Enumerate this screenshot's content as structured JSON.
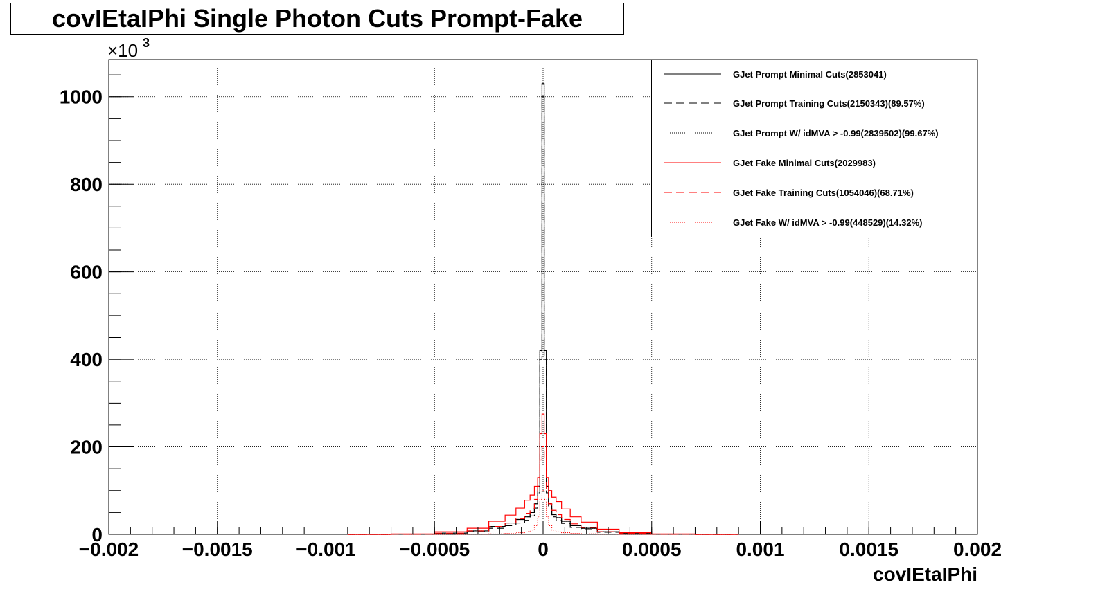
{
  "chart_data": {
    "type": "line",
    "title": "covIEtaIPhi Single Photon Cuts Prompt-Fake",
    "xlabel": "covIEtaIPhi",
    "ylabel": "",
    "y_multiplier": "×10",
    "y_multiplier_exp": "3",
    "xlim": [
      -0.002,
      0.002
    ],
    "ylim": [
      0,
      1085
    ],
    "x_ticks": [
      -0.002,
      -0.0015,
      -0.001,
      -0.0005,
      0,
      0.0005,
      0.001,
      0.0015,
      0.002
    ],
    "x_tick_labels": [
      "−0.002",
      "−0.0015",
      "−0.001",
      "−0.0005",
      "0",
      "0.0005",
      "0.001",
      "0.0015",
      "0.002"
    ],
    "y_ticks": [
      0,
      200,
      400,
      600,
      800,
      1000
    ],
    "y_tick_labels": [
      "0",
      "200",
      "400",
      "600",
      "800",
      "1000"
    ],
    "grid": true,
    "legend_position": "top-right",
    "x": [
      -0.0008,
      -0.0006,
      -0.0004,
      -0.0003,
      -0.0002,
      -0.00015,
      -0.0001,
      -7e-05,
      -5e-05,
      -3e-05,
      -2e-05,
      -1e-05,
      0,
      1e-05,
      2e-05,
      3e-05,
      5e-05,
      7e-05,
      0.0001,
      0.00015,
      0.0002,
      0.0003,
      0.0004,
      0.0006,
      0.0008
    ],
    "series": [
      {
        "name": "GJet Prompt Minimal Cuts(2853041)",
        "color": "#000000",
        "dash": "solid",
        "values": [
          0,
          0.5,
          3,
          8,
          18,
          26,
          34,
          40,
          50,
          70,
          110,
          420,
          1030,
          420,
          110,
          70,
          45,
          38,
          30,
          20,
          14,
          6,
          2,
          0.5,
          0
        ]
      },
      {
        "name": "GJet Prompt Training Cuts(2150343)(89.57%)",
        "color": "#000000",
        "dash": "long",
        "values": [
          0,
          0.3,
          2,
          6,
          14,
          20,
          26,
          32,
          42,
          60,
          95,
          400,
          1000,
          400,
          95,
          60,
          40,
          32,
          25,
          16,
          11,
          5,
          1.5,
          0.3,
          0
        ]
      },
      {
        "name": "GJet Prompt W/ idMVA > -0.99(2839502)(99.67%)",
        "color": "#000000",
        "dash": "dotted",
        "values": [
          0,
          0.5,
          3,
          8,
          18,
          26,
          34,
          40,
          50,
          70,
          110,
          420,
          1028,
          420,
          110,
          70,
          45,
          38,
          30,
          20,
          14,
          6,
          2,
          0.5,
          0
        ]
      },
      {
        "name": "GJet Fake Minimal Cuts(2029983)",
        "color": "#ff0000",
        "dash": "solid",
        "values": [
          0,
          1,
          6,
          14,
          30,
          44,
          60,
          78,
          90,
          110,
          130,
          230,
          275,
          230,
          130,
          100,
          85,
          75,
          58,
          40,
          28,
          12,
          4,
          1,
          0
        ]
      },
      {
        "name": "GJet Fake Training Cuts(1054046)(68.71%)",
        "color": "#ff0000",
        "dash": "long",
        "values": [
          0,
          0.5,
          3,
          8,
          18,
          26,
          36,
          48,
          58,
          80,
          110,
          170,
          200,
          170,
          100,
          70,
          55,
          45,
          34,
          24,
          16,
          6,
          2,
          0.5,
          0
        ]
      },
      {
        "name": "GJet Fake W/ idMVA > -0.99(448529)(14.32%)",
        "color": "#ff0000",
        "dash": "dotted",
        "values": [
          0,
          0,
          0.2,
          0.5,
          1,
          2,
          4,
          6,
          10,
          20,
          40,
          80,
          100,
          80,
          40,
          20,
          10,
          6,
          4,
          2,
          1,
          0.5,
          0.2,
          0,
          0
        ]
      }
    ]
  }
}
